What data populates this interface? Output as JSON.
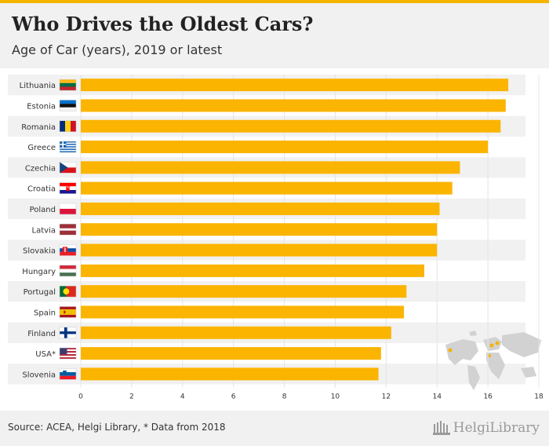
{
  "header": {
    "title": "Who Drives the Oldest Cars?",
    "subtitle": "Age of Car (years), 2019 or latest"
  },
  "footer": {
    "source": "Source: ACEA, Helgi Library, * Data from 2018",
    "brand": "HelgiLibrary"
  },
  "colors": {
    "bar": "#fbb400",
    "stripe": "#f1f1f1",
    "accent": "#f5b400"
  },
  "chart_data": {
    "type": "bar",
    "orientation": "horizontal",
    "title": "Who Drives the Oldest Cars?",
    "subtitle": "Age of Car (years), 2019 or latest",
    "categories": [
      "Lithuania",
      "Estonia",
      "Romania",
      "Greece",
      "Czechia",
      "Croatia",
      "Poland",
      "Latvia",
      "Slovakia",
      "Hungary",
      "Portugal",
      "Spain",
      "Finland",
      "USA*",
      "Slovenia"
    ],
    "flags": [
      "lithuania",
      "estonia",
      "romania",
      "greece",
      "czechia",
      "croatia",
      "poland",
      "latvia",
      "slovakia",
      "hungary",
      "portugal",
      "spain",
      "finland",
      "usa",
      "slovenia"
    ],
    "values": [
      16.8,
      16.7,
      16.5,
      16.0,
      14.9,
      14.6,
      14.1,
      14.0,
      14.0,
      13.5,
      12.8,
      12.7,
      12.2,
      11.8,
      11.7
    ],
    "xlim": [
      0,
      18
    ],
    "xticks": [
      "0",
      "2",
      "4",
      "6",
      "8",
      "10",
      "12",
      "14",
      "16",
      "18"
    ],
    "xlabel": "",
    "ylabel": "",
    "grid": true
  }
}
